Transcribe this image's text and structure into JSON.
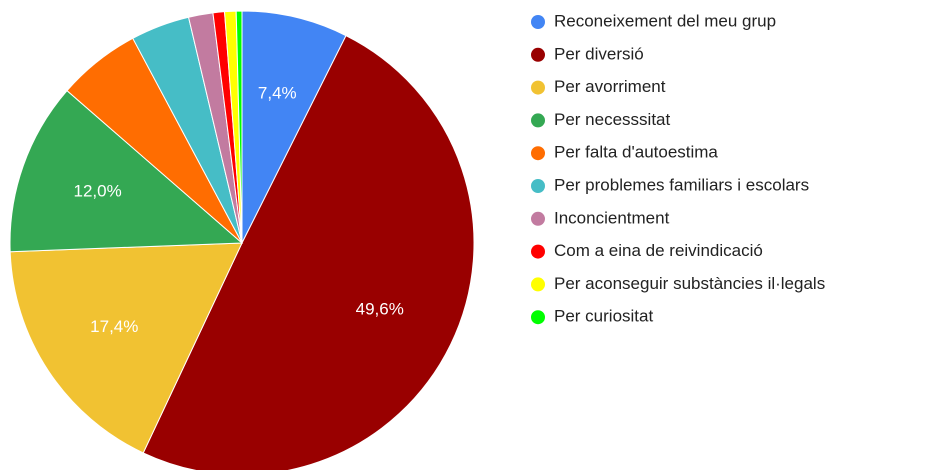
{
  "chart_data": {
    "type": "pie",
    "categories": [
      "Reconeixement del meu grup",
      "Per diversió",
      "Per avorriment",
      "Per necesssitat",
      "Per falta d'autoestima",
      "Per problemes familiars i escolars",
      "Inconcientment",
      "Com a eina de reivindicació",
      "Per aconseguir substàncies il·legals",
      "Per curiositat"
    ],
    "values": [
      7.4,
      49.6,
      17.4,
      12.0,
      5.8,
      4.1,
      1.7,
      0.8,
      0.8,
      0.4
    ],
    "value_labels": [
      "7,4%",
      "49,6%",
      "17,4%",
      "12,0%",
      null,
      null,
      null,
      null,
      null,
      null
    ],
    "colors": [
      "#4285f4",
      "#990000",
      "#f1c232",
      "#34a853",
      "#ff6d01",
      "#46bdc6",
      "#c27ba0",
      "#ff0000",
      "#ffff00",
      "#00ff00"
    ],
    "legend": "right"
  }
}
